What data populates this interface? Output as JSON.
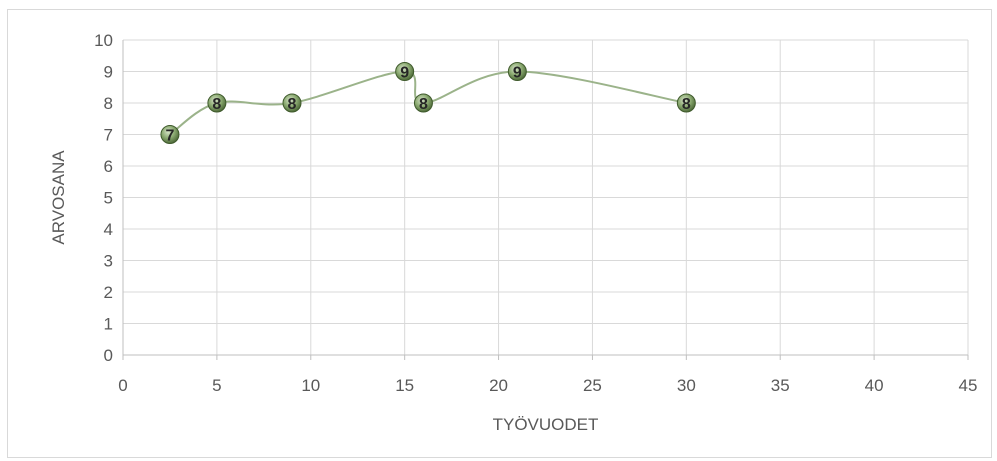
{
  "chart_data": {
    "type": "scatter",
    "title": "",
    "xlabel": "TYÖVUODET",
    "ylabel": "ARVOSANA",
    "xlim": [
      0,
      45
    ],
    "ylim": [
      0,
      10
    ],
    "x_ticks": [
      0,
      5,
      10,
      15,
      20,
      25,
      30,
      35,
      40,
      45
    ],
    "y_ticks": [
      0,
      1,
      2,
      3,
      4,
      5,
      6,
      7,
      8,
      9,
      10
    ],
    "grid": true,
    "smooth_line": true,
    "colors": {
      "line": "#9bb38a",
      "marker": "#6e8f52",
      "grid": "#d9d9d9"
    },
    "points": [
      {
        "x": 2.5,
        "y": 7,
        "label": "7"
      },
      {
        "x": 5,
        "y": 8,
        "label": "8"
      },
      {
        "x": 9,
        "y": 8,
        "label": "8"
      },
      {
        "x": 15,
        "y": 9,
        "label": "9"
      },
      {
        "x": 16,
        "y": 8,
        "label": "8"
      },
      {
        "x": 21,
        "y": 9,
        "label": "9"
      },
      {
        "x": 30,
        "y": 8,
        "label": "8"
      }
    ]
  }
}
